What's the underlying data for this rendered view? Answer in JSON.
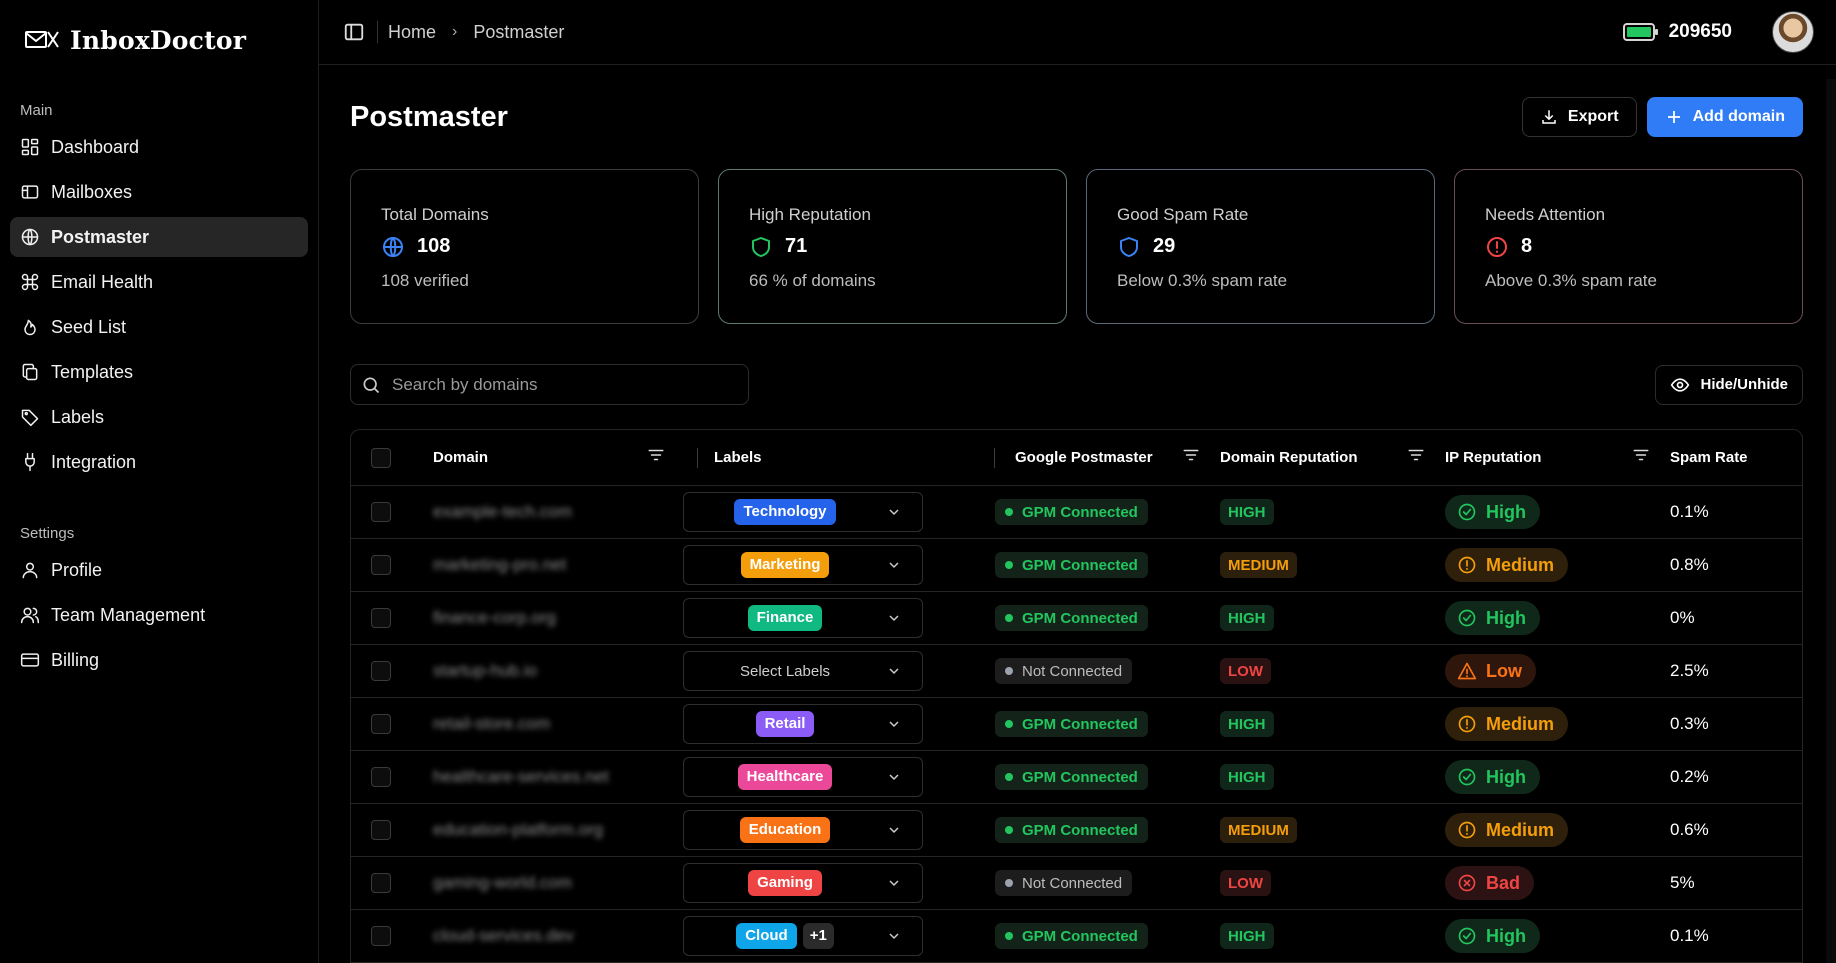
{
  "app": {
    "name": "InboxDoctor"
  },
  "sidebar": {
    "sections": [
      {
        "title": "Main",
        "items": [
          {
            "label": "Dashboard",
            "icon": "dashboard-icon"
          },
          {
            "label": "Mailboxes",
            "icon": "mailbox-icon"
          },
          {
            "label": "Postmaster",
            "icon": "globe-icon",
            "active": true
          },
          {
            "label": "Email Health",
            "icon": "command-icon"
          },
          {
            "label": "Seed List",
            "icon": "sprout-icon"
          },
          {
            "label": "Templates",
            "icon": "copy-icon"
          },
          {
            "label": "Labels",
            "icon": "tag-icon"
          },
          {
            "label": "Integration",
            "icon": "plug-icon"
          }
        ]
      },
      {
        "title": "Settings",
        "items": [
          {
            "label": "Profile",
            "icon": "user-icon"
          },
          {
            "label": "Team Management",
            "icon": "users-icon"
          },
          {
            "label": "Billing",
            "icon": "credit-card-icon"
          }
        ]
      }
    ]
  },
  "topbar": {
    "breadcrumb": [
      "Home",
      "Postmaster"
    ],
    "credits": "209650"
  },
  "page": {
    "title": "Postmaster",
    "export_label": "Export",
    "add_label": "Add domain"
  },
  "cards": [
    {
      "label": "Total Domains",
      "value": "108",
      "sub": "108 verified",
      "icon": "globe-icon",
      "color": "#3b82f6"
    },
    {
      "label": "High Reputation",
      "value": "71",
      "sub": "66 % of domains",
      "icon": "shield-icon",
      "color": "#22c55e"
    },
    {
      "label": "Good Spam Rate",
      "value": "29",
      "sub": "Below 0.3% spam rate",
      "icon": "shield-icon",
      "color": "#3b82f6"
    },
    {
      "label": "Needs Attention",
      "value": "8",
      "sub": "Above 0.3% spam rate",
      "icon": "alert-circle-icon",
      "color": "#ef4444"
    }
  ],
  "search": {
    "placeholder": "Search by domains"
  },
  "hide_label": "Hide/Unhide",
  "table": {
    "headers": {
      "domain": "Domain",
      "labels": "Labels",
      "gpm": "Google Postmaster",
      "drep": "Domain Reputation",
      "iprep": "IP Reputation",
      "spam": "Spam Rate"
    },
    "select_placeholder": "Select Labels",
    "rows": [
      {
        "domain": "example-tech.com",
        "labels": [
          {
            "name": "Technology",
            "color": "#2563eb"
          }
        ],
        "gpm": "GPM Connected",
        "connected": true,
        "drep": "HIGH",
        "iprep": "High",
        "spam": "0.1%"
      },
      {
        "domain": "marketing-pro.net",
        "labels": [
          {
            "name": "Marketing",
            "color": "#f59e0b"
          }
        ],
        "gpm": "GPM Connected",
        "connected": true,
        "drep": "MEDIUM",
        "iprep": "Medium",
        "spam": "0.8%"
      },
      {
        "domain": "finance-corp.org",
        "labels": [
          {
            "name": "Finance",
            "color": "#10b981"
          }
        ],
        "gpm": "GPM Connected",
        "connected": true,
        "drep": "HIGH",
        "iprep": "High",
        "spam": "0%"
      },
      {
        "domain": "startup-hub.io",
        "labels": [],
        "gpm": "Not Connected",
        "connected": false,
        "drep": "LOW",
        "iprep": "Low",
        "spam": "2.5%"
      },
      {
        "domain": "retail-store.com",
        "labels": [
          {
            "name": "Retail",
            "color": "#8b5cf6"
          }
        ],
        "gpm": "GPM Connected",
        "connected": true,
        "drep": "HIGH",
        "iprep": "Medium",
        "spam": "0.3%"
      },
      {
        "domain": "healthcare-services.net",
        "labels": [
          {
            "name": "Healthcare",
            "color": "#ec4899"
          }
        ],
        "gpm": "GPM Connected",
        "connected": true,
        "drep": "HIGH",
        "iprep": "High",
        "spam": "0.2%"
      },
      {
        "domain": "education-platform.org",
        "labels": [
          {
            "name": "Education",
            "color": "#f97316"
          }
        ],
        "gpm": "GPM Connected",
        "connected": true,
        "drep": "MEDIUM",
        "iprep": "Medium",
        "spam": "0.6%"
      },
      {
        "domain": "gaming-world.com",
        "labels": [
          {
            "name": "Gaming",
            "color": "#ef4444"
          }
        ],
        "gpm": "Not Connected",
        "connected": false,
        "drep": "LOW",
        "iprep": "Bad",
        "spam": "5%"
      },
      {
        "domain": "cloud-services.dev",
        "labels": [
          {
            "name": "Cloud",
            "color": "#0ea5e9"
          }
        ],
        "more": "+1",
        "gpm": "GPM Connected",
        "connected": true,
        "drep": "HIGH",
        "iprep": "High",
        "spam": "0.1%"
      }
    ]
  }
}
